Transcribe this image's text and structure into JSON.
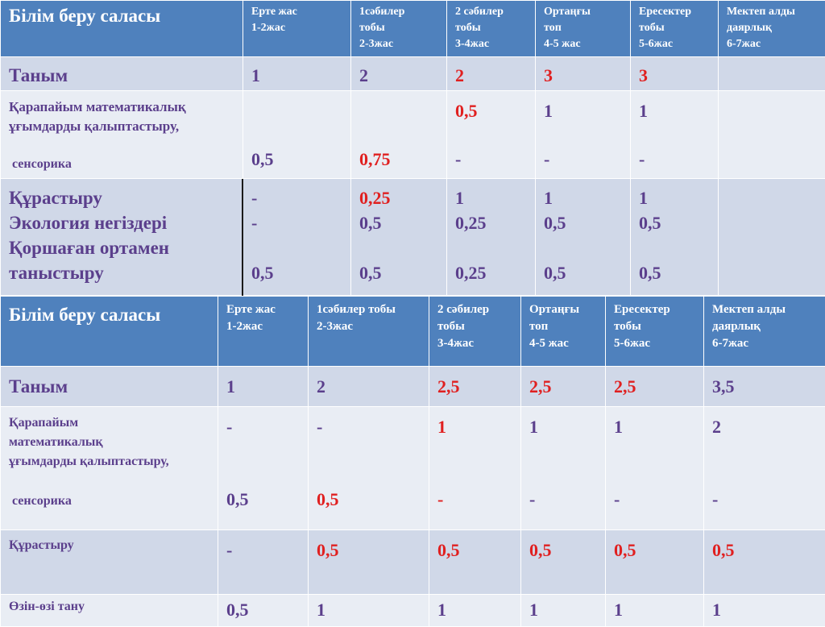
{
  "table1": {
    "header": {
      "area": "Білім беру саласы",
      "cols": [
        {
          "l1": "Ерте жас",
          "l2": "1-2жас",
          "l3": ""
        },
        {
          "l1": "1сәбилер",
          "l2": "тобы",
          "l3": "2-3жас"
        },
        {
          "l1": "2 сәбилер",
          "l2": "тобы",
          "l3": "3-4жас"
        },
        {
          "l1": "Ортаңғы",
          "l2": "топ",
          "l3": "4-5 жас"
        },
        {
          "l1": "Ересектер",
          "l2": "тобы",
          "l3": "5-6жас"
        },
        {
          "l1": "Мектеп алды",
          "l2": "даярлық",
          "l3": "6-7жас"
        }
      ]
    },
    "rows": {
      "tanym": {
        "label": "Таным",
        "v": [
          "1",
          "2",
          "2",
          "3",
          "3",
          ""
        ]
      },
      "math": {
        "label1": "Қарапайым математикалық",
        "label2": "ұғымдарды қалыптастыру,",
        "label3": "сенсорика",
        "top": [
          "",
          "",
          "0,5",
          "1",
          "1",
          ""
        ],
        "bottom": [
          "0,5",
          "0,75",
          "-",
          "-",
          "-",
          ""
        ]
      },
      "build": {
        "l1": "Құрастыру",
        "l2": "Экология негіздері",
        "l3": "Қоршаған ортамен",
        "l4": "таныстыру",
        "a": [
          "-",
          "0,25",
          "1",
          "1",
          "1",
          ""
        ],
        "b": [
          "-",
          "0,5",
          "0,25",
          "0,5",
          "0,5",
          ""
        ],
        "c": [
          "0,5",
          "0,5",
          "0,25",
          "0,5",
          "0,5",
          ""
        ]
      }
    }
  },
  "table2": {
    "header": {
      "area": "Білім беру саласы",
      "cols": [
        {
          "l1": "Ерте жас",
          "l2": "1-2жас",
          "l3": ""
        },
        {
          "l1": "1сәбилер тобы",
          "l2": "2-3жас",
          "l3": ""
        },
        {
          "l1": "2 сәбилер",
          "l2": "тобы",
          "l3": "3-4жас"
        },
        {
          "l1": "Ортаңғы",
          "l2": "топ",
          "l3": "4-5 жас"
        },
        {
          "l1": "Ересектер",
          "l2": "тобы",
          "l3": "5-6жас"
        },
        {
          "l1": "Мектеп алды",
          "l2": "даярлық",
          "l3": "6-7жас"
        }
      ]
    },
    "rows": {
      "tanym": {
        "label": "Таным",
        "v": [
          "1",
          "2",
          "2,5",
          "2,5",
          "2,5",
          "3,5"
        ]
      },
      "math": {
        "label1": "Қарапайым",
        "label2": "математикалық",
        "label3": "ұғымдарды қалыптастыру,",
        "label4": "сенсорика",
        "top": [
          "-",
          "-",
          "1",
          "1",
          "1",
          "2"
        ],
        "bottom": [
          "0,5",
          "0,5",
          "-",
          "-",
          "-",
          "-"
        ]
      },
      "build": {
        "label": "Құрастыру",
        "v": [
          "-",
          "0,5",
          "0,5",
          "0,5",
          "0,5",
          "0,5"
        ]
      },
      "self": {
        "label": "Өзін-өзі тану",
        "v": [
          "0,5",
          "1",
          "1",
          "1",
          "1",
          "1"
        ]
      }
    }
  }
}
